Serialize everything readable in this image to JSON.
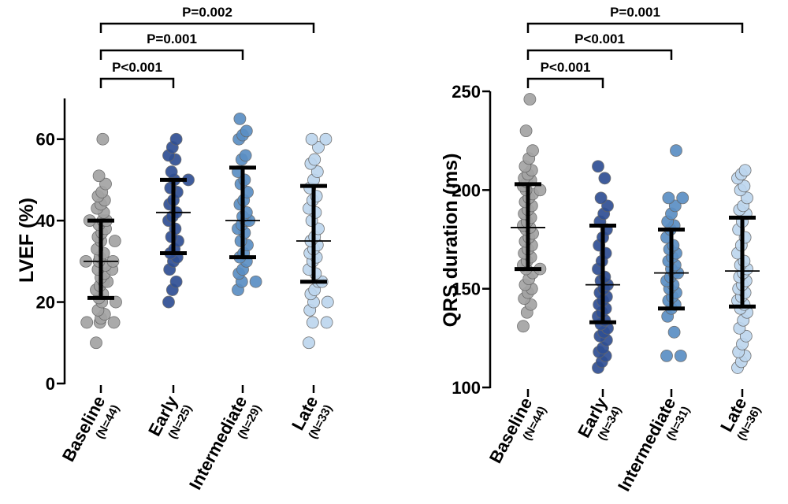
{
  "chart_data": [
    {
      "type": "scatter",
      "ylabel": "LVEF (%)",
      "ylim": [
        0,
        70
      ],
      "yticks": [
        0,
        20,
        40,
        60
      ],
      "categories": [
        "Baseline",
        "Early",
        "Intermediate",
        "Late"
      ],
      "n_labels": [
        "(N=44)",
        "(N=25)",
        "(N=29)",
        "(N=33)"
      ],
      "colors": [
        "#a3a3a3",
        "#2f4f94",
        "#5b8fc4",
        "#bdd6ee"
      ],
      "center": [
        30,
        42,
        40,
        35
      ],
      "error_low": [
        21,
        32,
        31,
        25
      ],
      "error_high": [
        40,
        50,
        53,
        48.5
      ],
      "comparisons": [
        {
          "from": "Baseline",
          "to": "Early",
          "label": "P<0.001"
        },
        {
          "from": "Baseline",
          "to": "Intermediate",
          "label": "P=0.001"
        },
        {
          "from": "Baseline",
          "to": "Late",
          "label": "P=0.002"
        }
      ],
      "series": [
        {
          "values": [
            10,
            15,
            15,
            15,
            16,
            17,
            18,
            20,
            20,
            21,
            22,
            23,
            24,
            25,
            25,
            26,
            27,
            28,
            28,
            29,
            30,
            30,
            30,
            31,
            32,
            33,
            35,
            35,
            36,
            37,
            38,
            39,
            40,
            40,
            40,
            42,
            43,
            44,
            45,
            46,
            47,
            49,
            51,
            60
          ]
        },
        {
          "values": [
            20,
            23,
            25,
            28,
            30,
            31,
            32,
            33,
            35,
            36,
            38,
            40,
            41,
            42,
            44,
            45,
            47,
            48,
            50,
            50,
            52,
            55,
            56,
            58,
            60
          ]
        },
        {
          "values": [
            23,
            25,
            25,
            27,
            28,
            30,
            31,
            32,
            34,
            35,
            37,
            38,
            39,
            40,
            40,
            41,
            42,
            44,
            45,
            47,
            49,
            50,
            52,
            55,
            56,
            60,
            61,
            62,
            65
          ]
        },
        {
          "values": [
            10,
            15,
            15,
            18,
            20,
            20,
            22,
            23,
            25,
            25,
            27,
            28,
            30,
            31,
            32,
            33,
            34,
            35,
            36,
            38,
            40,
            42,
            43,
            45,
            46,
            48,
            50,
            52,
            54,
            55,
            58,
            60,
            60
          ]
        }
      ]
    },
    {
      "type": "scatter",
      "ylabel": "QRS duration (ms)",
      "ylim": [
        100,
        250
      ],
      "yticks": [
        100,
        150,
        200,
        250
      ],
      "categories": [
        "Baseline",
        "Early",
        "Intermediate",
        "Late"
      ],
      "n_labels": [
        "(N=44)",
        "(N=34)",
        "(N=31)",
        "(N=36)"
      ],
      "colors": [
        "#a3a3a3",
        "#2f4f94",
        "#5b8fc4",
        "#bdd6ee"
      ],
      "center": [
        181,
        152,
        158,
        159
      ],
      "error_low": [
        160,
        133,
        140,
        141
      ],
      "error_high": [
        203,
        182,
        180,
        186
      ],
      "comparisons": [
        {
          "from": "Baseline",
          "to": "Early",
          "label": "P<0.001"
        },
        {
          "from": "Baseline",
          "to": "Intermediate",
          "label": "P<0.001"
        },
        {
          "from": "Baseline",
          "to": "Late",
          "label": "P=0.001"
        }
      ],
      "series": [
        {
          "values": [
            131,
            138,
            142,
            145,
            148,
            150,
            152,
            155,
            158,
            160,
            160,
            162,
            164,
            166,
            168,
            170,
            172,
            174,
            176,
            178,
            180,
            181,
            182,
            184,
            186,
            188,
            190,
            192,
            194,
            196,
            198,
            200,
            200,
            202,
            204,
            205,
            206,
            208,
            210,
            212,
            216,
            220,
            230,
            246
          ]
        },
        {
          "values": [
            110,
            113,
            116,
            118,
            120,
            124,
            126,
            128,
            130,
            132,
            134,
            136,
            138,
            140,
            142,
            144,
            146,
            148,
            150,
            152,
            154,
            156,
            160,
            164,
            168,
            172,
            176,
            180,
            184,
            188,
            192,
            196,
            206,
            212
          ]
        },
        {
          "values": [
            116,
            116,
            128,
            136,
            140,
            142,
            144,
            146,
            148,
            150,
            152,
            154,
            156,
            158,
            158,
            160,
            162,
            164,
            166,
            168,
            170,
            172,
            176,
            180,
            182,
            184,
            188,
            192,
            196,
            196,
            220
          ]
        },
        {
          "values": [
            110,
            113,
            116,
            118,
            122,
            126,
            130,
            134,
            138,
            140,
            142,
            144,
            146,
            148,
            150,
            152,
            154,
            156,
            158,
            160,
            162,
            164,
            168,
            172,
            176,
            180,
            184,
            188,
            190,
            192,
            196,
            200,
            202,
            206,
            208,
            210
          ]
        }
      ]
    }
  ]
}
